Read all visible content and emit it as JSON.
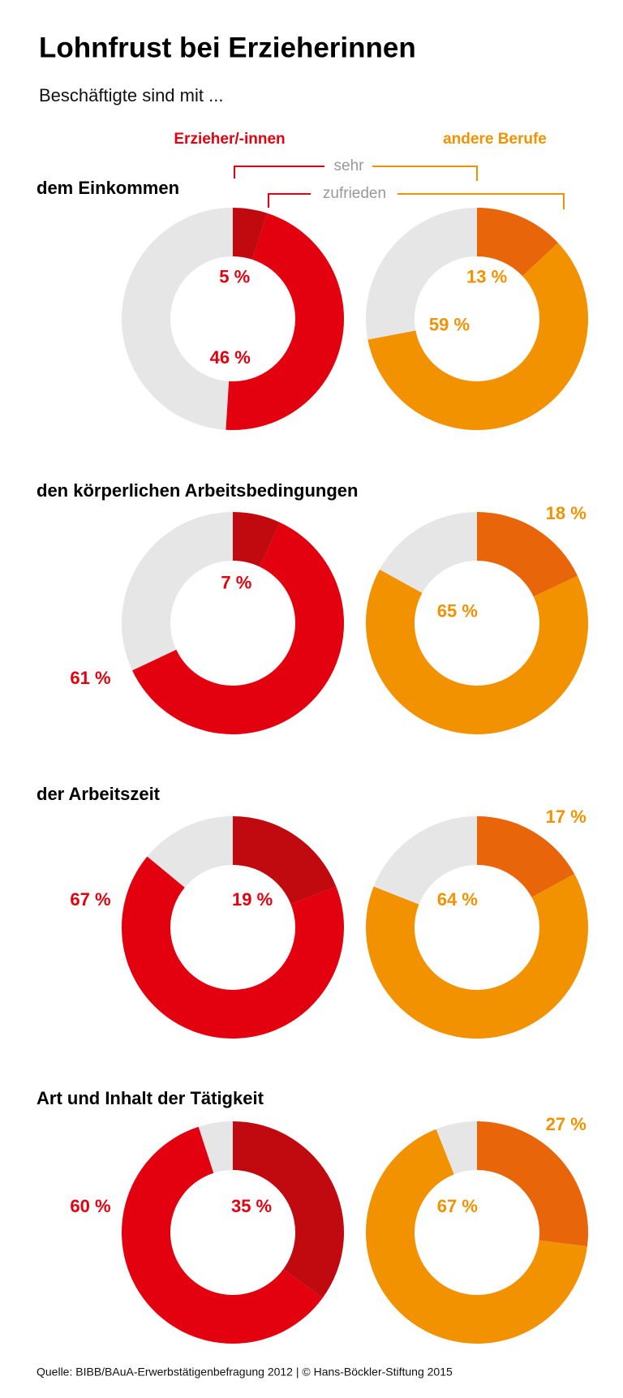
{
  "header": {
    "title": "Lohnfrust bei Erzieherinnen",
    "subtitle": "Beschäftigte sind mit ..."
  },
  "legend": {
    "series": [
      {
        "name": "Erzieher/-innen",
        "colors": [
          "#c00a0f",
          "#e3000f"
        ]
      },
      {
        "name": "andere Berufe",
        "colors": [
          "#e8650a",
          "#f39200"
        ]
      }
    ],
    "categories": [
      "sehr",
      "zufrieden"
    ]
  },
  "chart_data": [
    {
      "type": "donut",
      "title": "dem Einkommen",
      "series": [
        {
          "values": [
            5,
            46
          ],
          "value_labels": [
            "5 %",
            "46 %"
          ]
        },
        {
          "values": [
            13,
            59
          ],
          "value_labels": [
            "13 %",
            "59 %"
          ]
        }
      ]
    },
    {
      "type": "donut",
      "title": "den körperlichen Arbeitsbedingungen",
      "series": [
        {
          "values": [
            7,
            61
          ],
          "value_labels": [
            "7 %",
            "61 %"
          ]
        },
        {
          "values": [
            18,
            65
          ],
          "value_labels": [
            "18 %",
            "65 %"
          ]
        }
      ]
    },
    {
      "type": "donut",
      "title": "der Arbeitszeit",
      "series": [
        {
          "values": [
            19,
            67
          ],
          "value_labels": [
            "19 %",
            "67 %"
          ]
        },
        {
          "values": [
            17,
            64
          ],
          "value_labels": [
            "17 %",
            "64 %"
          ]
        }
      ]
    },
    {
      "type": "donut",
      "title": "Art und Inhalt der Tätigkeit",
      "series": [
        {
          "values": [
            35,
            60
          ],
          "value_labels": [
            "35 %",
            "60 %"
          ]
        },
        {
          "values": [
            27,
            67
          ],
          "value_labels": [
            "27 %",
            "67 %"
          ]
        }
      ]
    }
  ],
  "source": "Quelle: BIBB/BAuA-Erwerbstätigenbefragung 2012 | © Hans-Böckler-Stiftung 2015"
}
